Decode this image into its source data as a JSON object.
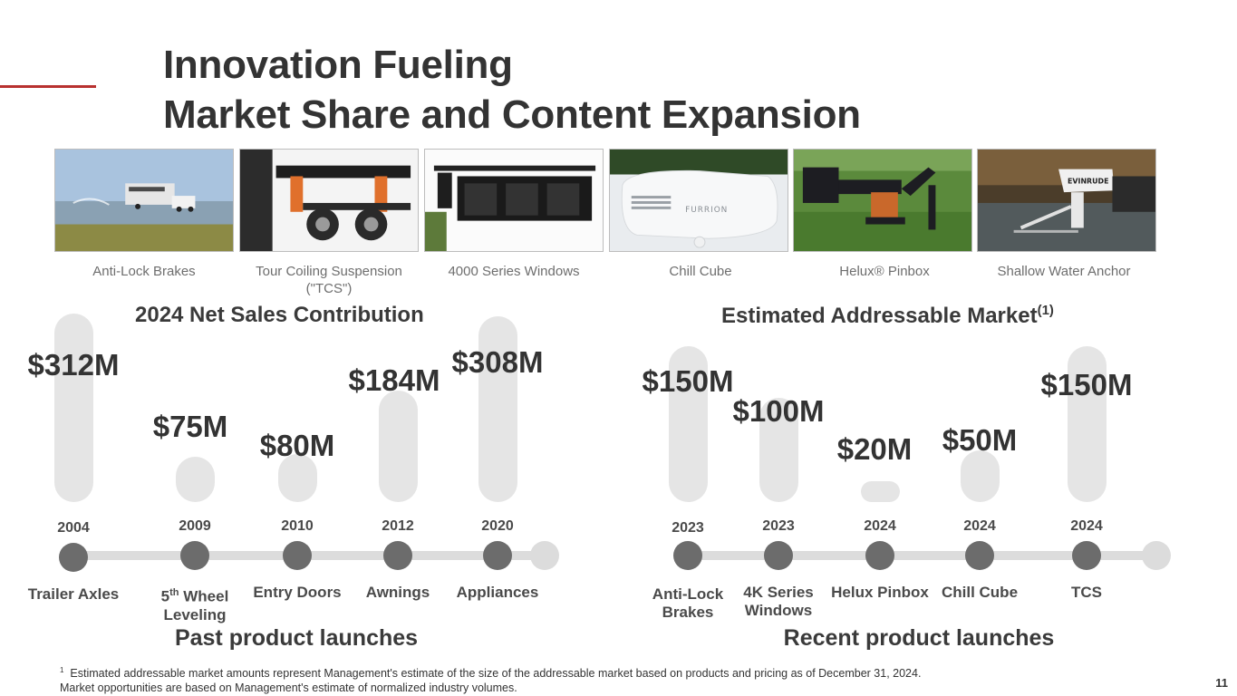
{
  "title": {
    "line1": "Innovation Fueling",
    "line2": "Market Share and Content Expansion"
  },
  "colors": {
    "accent": "#b8312f",
    "bar": "#e5e5e5",
    "dot": "#6c6c6c",
    "track": "#dcdcdc"
  },
  "products": [
    {
      "caption": "Anti-Lock Brakes",
      "icon": "rv-truck-photo"
    },
    {
      "caption": "Tour Coiling Suspension (\"TCS\")",
      "icon": "suspension-photo"
    },
    {
      "caption": "4000 Series Windows",
      "icon": "rv-windows-photo"
    },
    {
      "caption": "Chill Cube",
      "icon": "air-conditioner-photo",
      "brand": "FURRION"
    },
    {
      "caption": "Helux® Pinbox",
      "icon": "pinbox-photo"
    },
    {
      "caption": "Shallow Water Anchor",
      "icon": "boat-anchor-photo",
      "brand": "EVINRUDE"
    }
  ],
  "left": {
    "title": "2024 Net Sales Contribution",
    "subtitle": "Past product launches",
    "items": [
      {
        "value_label": "$312M",
        "year": "2004",
        "product": "Trailer Axles"
      },
      {
        "value_label": "$75M",
        "year": "2009",
        "product_html": "5<sup>th</sup> Wheel Leveling"
      },
      {
        "value_label": "$80M",
        "year": "2010",
        "product": "Entry Doors"
      },
      {
        "value_label": "$184M",
        "year": "2012",
        "product": "Awnings"
      },
      {
        "value_label": "$308M",
        "year": "2020",
        "product": "Appliances"
      }
    ]
  },
  "right": {
    "title": "Estimated Addressable Market",
    "title_sup": "(1)",
    "subtitle": "Recent product launches",
    "items": [
      {
        "value_label": "$150M",
        "year": "2023",
        "product": "Anti-Lock Brakes"
      },
      {
        "value_label": "$100M",
        "year": "2023",
        "product": "4K Series Windows"
      },
      {
        "value_label": "$20M",
        "year": "2024",
        "product": "Helux Pinbox"
      },
      {
        "value_label": "$50M",
        "year": "2024",
        "product": "Chill Cube"
      },
      {
        "value_label": "$150M",
        "year": "2024",
        "product": "TCS"
      }
    ]
  },
  "chart_data": [
    {
      "type": "bar",
      "title": "2024 Net Sales Contribution",
      "categories": [
        "Trailer Axles (2004)",
        "5th Wheel Leveling (2009)",
        "Entry Doors (2010)",
        "Awnings (2012)",
        "Appliances (2020)"
      ],
      "values": [
        312,
        75,
        80,
        184,
        308
      ],
      "unit": "$M"
    },
    {
      "type": "bar",
      "title": "Estimated Addressable Market",
      "categories": [
        "Anti-Lock Brakes (2023)",
        "4K Series Windows (2023)",
        "Helux Pinbox (2024)",
        "Chill Cube (2024)",
        "TCS (2024)"
      ],
      "values": [
        150,
        100,
        20,
        50,
        150
      ],
      "unit": "$M"
    }
  ],
  "footnote": {
    "marker": "1",
    "line1": "Estimated addressable market amounts represent Management's estimate of the size of the addressable market based on products and pricing as of December 31, 2024.",
    "line2": "Market opportunities are based on Management's estimate of normalized industry volumes."
  },
  "page_number": "11"
}
